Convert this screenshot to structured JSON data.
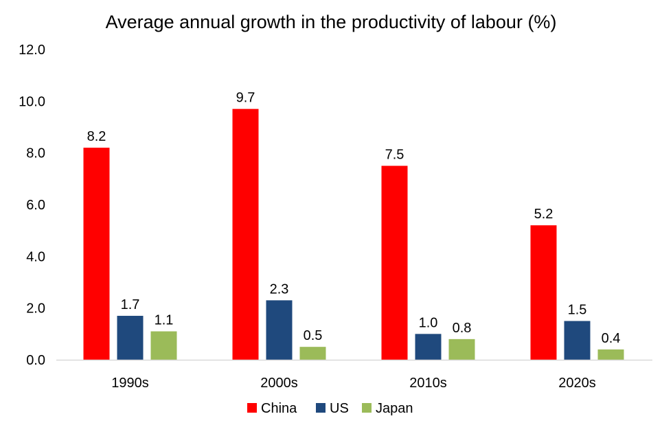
{
  "chart_data": {
    "type": "bar",
    "title": "Average annual growth in the productivity of labour (%)",
    "xlabel": "",
    "ylabel": "",
    "categories": [
      "1990s",
      "2000s",
      "2010s",
      "2020s"
    ],
    "series": [
      {
        "name": "China",
        "color": "#ff0000",
        "values": [
          8.2,
          9.7,
          7.5,
          5.2
        ]
      },
      {
        "name": "US",
        "color": "#1f497d",
        "values": [
          1.7,
          2.3,
          1.0,
          1.5
        ]
      },
      {
        "name": "Japan",
        "color": "#9bbb59",
        "values": [
          1.1,
          0.5,
          0.8,
          0.4
        ]
      }
    ],
    "ylim": [
      0,
      12
    ],
    "yticks": [
      "0.0",
      "2.0",
      "4.0",
      "6.0",
      "8.0",
      "10.0",
      "12.0"
    ],
    "data_labels": [
      [
        "8.2",
        "9.7",
        "7.5",
        "5.2"
      ],
      [
        "1.7",
        "2.3",
        "1.0",
        "1.5"
      ],
      [
        "1.1",
        "0.5",
        "0.8",
        "0.4"
      ]
    ],
    "legend_position": "bottom",
    "grid": false
  }
}
